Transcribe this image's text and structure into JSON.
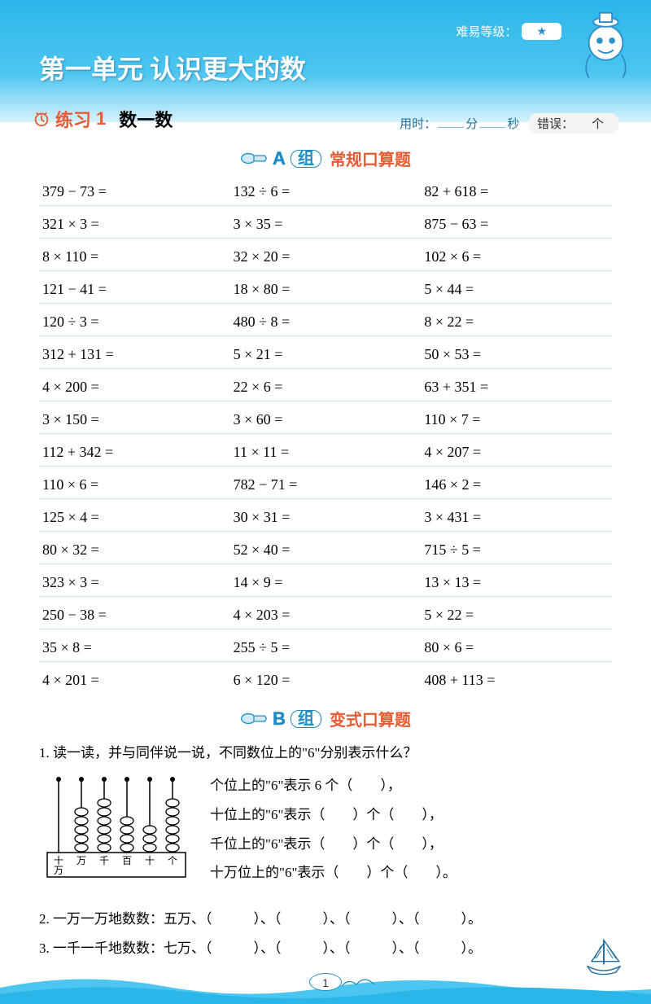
{
  "colors": {
    "sky": "#2bb6ea",
    "skyLight": "#d8f2fc",
    "orange": "#e85a33",
    "blueText": "#1f8bc4",
    "ruleLine": "#c8e3f2"
  },
  "difficulty": {
    "label": "难易等级："
  },
  "unitTitle": "第一单元 认识更大的数",
  "practice": {
    "label": "练习",
    "num": "1",
    "sub": "数一数",
    "timeLabel1": "用时：",
    "timeUnit1": "分",
    "timeUnit2": "秒",
    "errLabel": "错误：",
    "errUnit": "个"
  },
  "sectionA": {
    "letter": "A",
    "group": "组",
    "title": "常规口算题"
  },
  "sectionB": {
    "letter": "B",
    "group": "组",
    "title": "变式口算题"
  },
  "problems": {
    "col1": [
      "379 − 73 =",
      "321 × 3 =",
      "8 × 110 =",
      "121 − 41 =",
      "120 ÷ 3 =",
      "312 + 131 =",
      "4 × 200 =",
      "3 × 150 =",
      "112 + 342 =",
      "110 × 6 =",
      "125 × 4 =",
      "80 × 32 =",
      "323 × 3 =",
      "250 − 38 =",
      "35 × 8 =",
      "4 × 201 ="
    ],
    "col2": [
      "132 ÷ 6 =",
      "3 × 35 =",
      "32 × 20 =",
      "18 × 80 =",
      "480 ÷ 8 =",
      "5 × 21 =",
      "22 × 6 =",
      "3 × 60 =",
      "11 × 11 =",
      "782 − 71 =",
      "30 × 31 =",
      "52 × 40 =",
      "14 × 9 =",
      "4 × 203 =",
      "255 ÷ 5 =",
      "6 × 120 ="
    ],
    "col3": [
      "82 + 618 =",
      "875 − 63 =",
      "102 × 6 =",
      "5 × 44 =",
      "8 × 22 =",
      "50 × 53 =",
      "63 + 351 =",
      "110 × 7 =",
      "4 × 207 =",
      "146 × 2 =",
      "3 × 431 =",
      "715 ÷ 5 =",
      "13 × 13 =",
      "5 × 22 =",
      "80 × 6 =",
      "408 + 113 ="
    ]
  },
  "bQuestions": {
    "q1": {
      "stem": "1. 读一读，并与同伴说一说，不同数位上的\"6\"分别表示什么？",
      "line1": "个位上的\"6\"表示 6 个（　　），",
      "line2": "十位上的\"6\"表示（　　）个（　　），",
      "line3": "千位上的\"6\"表示（　　）个（　　），",
      "line4": "十万位上的\"6\"表示（　　）个（　　）。"
    },
    "abacusLabels": [
      "十万",
      "万",
      "千",
      "百",
      "十",
      "个"
    ],
    "q2": "2. 一万一万地数数：五万、（　　　）、（　　　）、（　　　）、（　　　）。",
    "q3": "3. 一千一千地数数：七万、（　　　）、（　　　）、（　　　）、（　　　）。"
  },
  "pageNumber": "1"
}
